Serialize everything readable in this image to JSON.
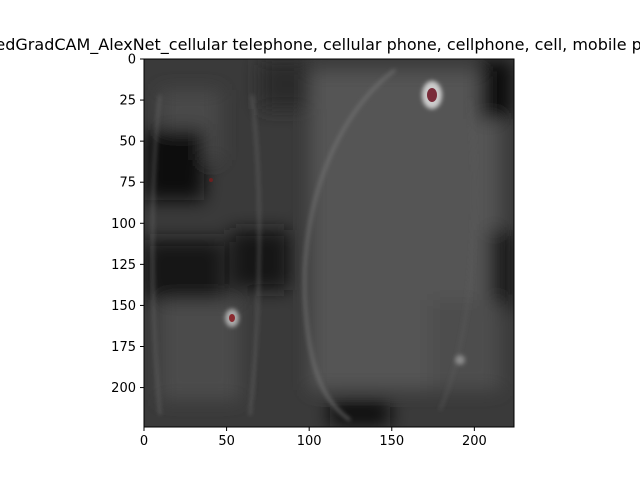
{
  "chart_data": {
    "type": "heatmap",
    "title": "GuidedGradCAM_AlexNet_cellular telephone, cellular phone, cellphone, cell, mobile phone",
    "xlabel": "",
    "ylabel": "",
    "xlim": [
      0,
      224
    ],
    "ylim": [
      224,
      0
    ],
    "x_ticks": [
      0,
      50,
      100,
      150,
      200
    ],
    "y_ticks": [
      0,
      25,
      50,
      75,
      100,
      125,
      150,
      175,
      200
    ],
    "x_tick_labels": [
      "0",
      "50",
      "100",
      "150",
      "200"
    ],
    "y_tick_labels": [
      "0",
      "25",
      "50",
      "75",
      "100",
      "125",
      "150",
      "175",
      "200"
    ],
    "grid": false,
    "colormap": "grayscale",
    "bright_spots": [
      {
        "x": 175,
        "y": 22
      },
      {
        "x": 53,
        "y": 158
      },
      {
        "x": 190,
        "y": 183
      }
    ]
  }
}
